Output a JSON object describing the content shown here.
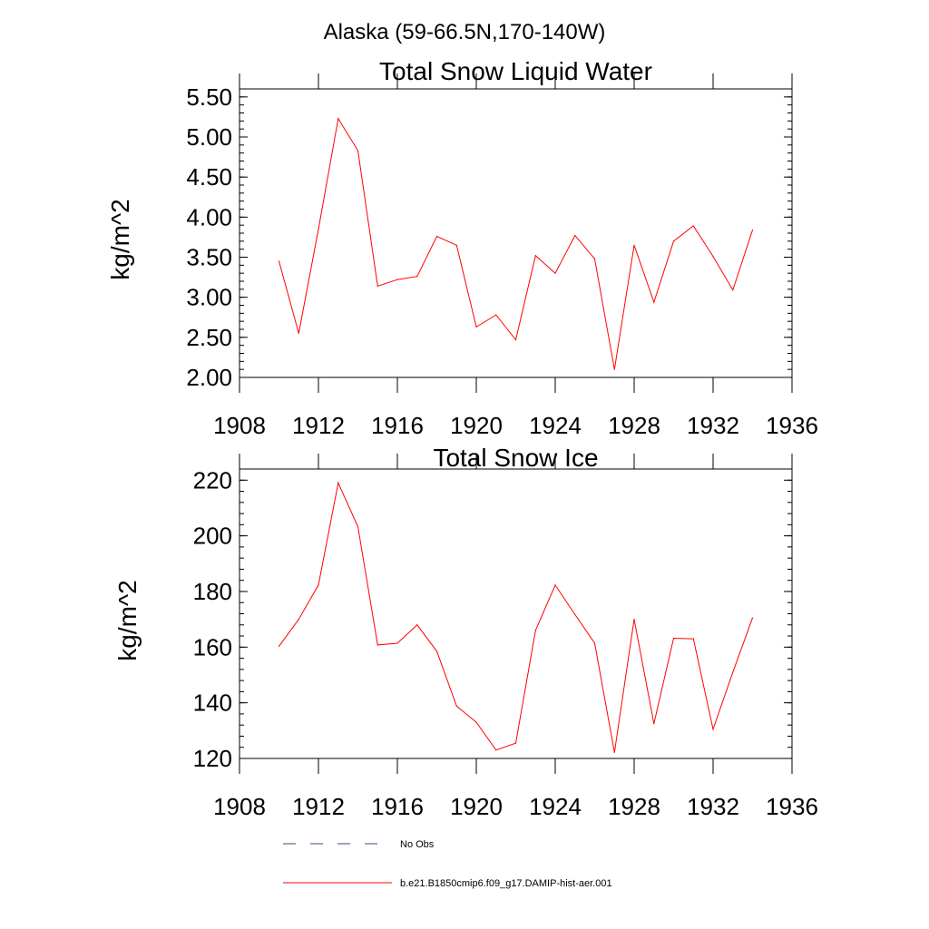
{
  "page_title": "Alaska (59-66.5N,170-140W)",
  "colors": {
    "series": "#ff0000",
    "axis": "#000000",
    "no_obs": "#3b4a7a"
  },
  "legend": {
    "no_obs_label": "No Obs",
    "series_label": "b.e21.B1850cmip6.f09_g17.DAMIP-hist-aer.001"
  },
  "chart_data": [
    {
      "type": "line",
      "title": "Total Snow Liquid Water",
      "xlabel": "",
      "ylabel": "kg/m^2",
      "xlim": [
        1908,
        1936
      ],
      "ylim": [
        2.0,
        5.6
      ],
      "xticks": [
        1908,
        1912,
        1916,
        1920,
        1924,
        1928,
        1932,
        1936
      ],
      "xtick_labels": [
        "1908",
        "1912",
        "1916",
        "1920",
        "1924",
        "1928",
        "1932",
        "1936"
      ],
      "yticks": [
        2.0,
        2.5,
        3.0,
        3.5,
        4.0,
        4.5,
        5.0,
        5.5
      ],
      "ytick_labels": [
        "2.00",
        "2.50",
        "3.00",
        "3.50",
        "4.00",
        "4.50",
        "5.00",
        "5.50"
      ],
      "grid": false,
      "x": [
        1910,
        1911,
        1912,
        1913,
        1914,
        1915,
        1916,
        1917,
        1918,
        1919,
        1920,
        1921,
        1922,
        1923,
        1924,
        1925,
        1926,
        1927,
        1928,
        1929,
        1930,
        1931,
        1932,
        1933,
        1934
      ],
      "series": [
        {
          "name": "b.e21.B1850cmip6.f09_g17.DAMIP-hist-aer.001",
          "values": [
            3.45,
            2.55,
            3.85,
            5.23,
            4.83,
            3.14,
            3.22,
            3.26,
            3.76,
            3.65,
            2.63,
            2.78,
            2.47,
            3.52,
            3.3,
            3.77,
            3.48,
            2.1,
            3.65,
            2.94,
            3.7,
            3.89,
            3.51,
            3.09,
            3.84
          ]
        }
      ]
    },
    {
      "type": "line",
      "title": "Total Snow Ice",
      "xlabel": "",
      "ylabel": "kg/m^2",
      "xlim": [
        1908,
        1936
      ],
      "ylim": [
        120,
        224
      ],
      "xticks": [
        1908,
        1912,
        1916,
        1920,
        1924,
        1928,
        1932,
        1936
      ],
      "xtick_labels": [
        "1908",
        "1912",
        "1916",
        "1920",
        "1924",
        "1928",
        "1932",
        "1936"
      ],
      "yticks": [
        120,
        140,
        160,
        180,
        200,
        220
      ],
      "ytick_labels": [
        "120",
        "140",
        "160",
        "180",
        "200",
        "220"
      ],
      "grid": false,
      "x": [
        1910,
        1911,
        1912,
        1913,
        1914,
        1915,
        1916,
        1917,
        1918,
        1919,
        1920,
        1921,
        1922,
        1923,
        1924,
        1925,
        1926,
        1927,
        1928,
        1929,
        1930,
        1931,
        1932,
        1933,
        1934
      ],
      "series": [
        {
          "name": "b.e21.B1850cmip6.f09_g17.DAMIP-hist-aer.001",
          "values": [
            160.3,
            170.0,
            182.3,
            219.0,
            203.3,
            160.8,
            161.4,
            168.0,
            158.5,
            138.8,
            133.0,
            123.0,
            125.5,
            166.0,
            182.3,
            171.7,
            161.4,
            122.2,
            170.0,
            132.5,
            163.2,
            163.0,
            130.5,
            151.0,
            170.5
          ]
        }
      ]
    }
  ]
}
